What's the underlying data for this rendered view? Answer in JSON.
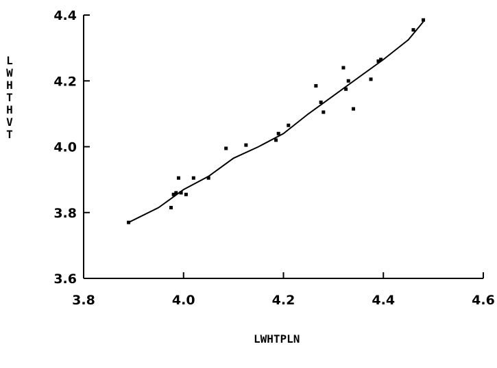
{
  "chart_data": {
    "type": "scatter",
    "xlabel": "LWHTPLN",
    "ylabel": "LWHTHVT",
    "xlim": [
      3.8,
      4.6
    ],
    "ylim": [
      3.6,
      4.4
    ],
    "x_ticks": [
      "3.8",
      "4.0",
      "4.2",
      "4.4",
      "4.6"
    ],
    "y_ticks": [
      "3.6",
      "3.8",
      "4.0",
      "4.2",
      "4.4"
    ],
    "grid": false,
    "series": [
      {
        "type": "scatter",
        "x": [
          3.89,
          3.975,
          3.98,
          3.985,
          3.99,
          3.995,
          4.005,
          4.02,
          4.05,
          4.085,
          4.125,
          4.185,
          4.19,
          4.21,
          4.265,
          4.275,
          4.28,
          4.32,
          4.325,
          4.33,
          4.34,
          4.375,
          4.39,
          4.395,
          4.46,
          4.48
        ],
        "y": [
          3.77,
          3.815,
          3.855,
          3.86,
          3.905,
          3.86,
          3.855,
          3.905,
          3.905,
          3.995,
          4.005,
          4.02,
          4.04,
          4.065,
          4.185,
          4.135,
          4.105,
          4.24,
          4.175,
          4.2,
          4.115,
          4.205,
          4.26,
          4.265,
          4.355,
          4.385
        ]
      },
      {
        "type": "line",
        "x": [
          3.89,
          3.95,
          4.0,
          4.05,
          4.1,
          4.15,
          4.2,
          4.25,
          4.3,
          4.35,
          4.4,
          4.45,
          4.48
        ],
        "y": [
          3.77,
          3.815,
          3.87,
          3.91,
          3.965,
          4.0,
          4.04,
          4.1,
          4.155,
          4.21,
          4.265,
          4.325,
          4.38
        ]
      }
    ]
  }
}
